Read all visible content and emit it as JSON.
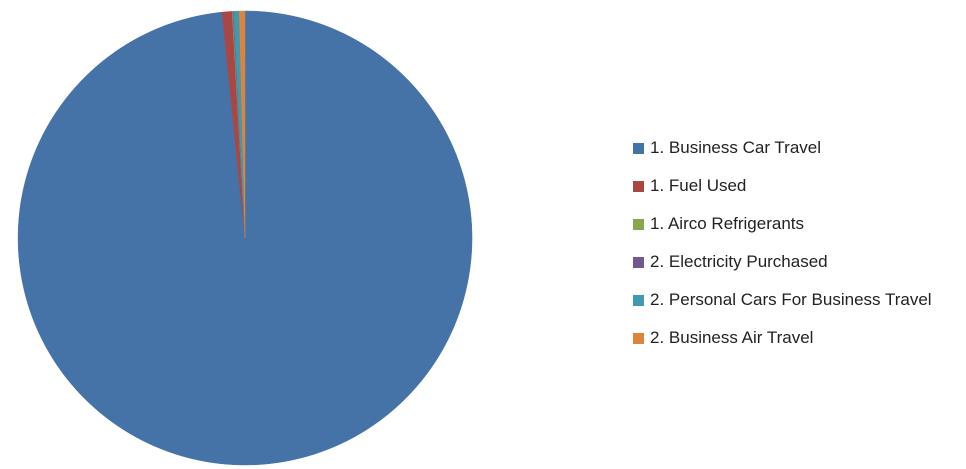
{
  "chart_data": {
    "type": "pie",
    "title": "",
    "start_angle_deg": 0,
    "direction": "clockwise",
    "legend_position": "right",
    "slices": [
      {
        "label": "1. Business Car Travel",
        "value": 98.4,
        "color": "#4572A7"
      },
      {
        "label": "1. Fuel Used",
        "value": 0.7,
        "color": "#AA4643"
      },
      {
        "label": "1. Airco Refrigerants",
        "value": 0.05,
        "color": "#89A54E"
      },
      {
        "label": "2. Electricity Purchased",
        "value": 0.05,
        "color": "#71588F"
      },
      {
        "label": "2. Personal Cars For Business Travel",
        "value": 0.4,
        "color": "#4198AF"
      },
      {
        "label": "2. Business Air Travel",
        "value": 0.4,
        "color": "#DB843D"
      }
    ]
  }
}
